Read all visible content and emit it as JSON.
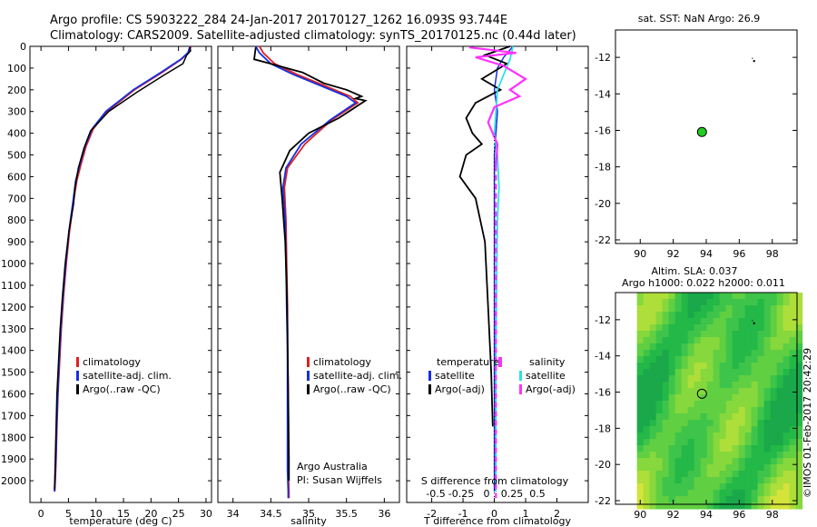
{
  "title_line1": "Argo profile: CS 5903222_284 24-Jan-2017 20170127_1262 16.093S 93.744E",
  "title_line2": "Climatology: CARS2009. Satellite-adjusted climatology: synTS_20170125.nc (0.44d later)",
  "side_label": "©IMOS 01-Feb-2017 20:42:29",
  "colors": {
    "climatology": "#e02020",
    "satellite": "#1530e0",
    "argo": "#000000",
    "sat_salinity": "#30e0e8",
    "argo_salinity": "#ff30ff",
    "float_marker": "#22cc22"
  },
  "chart_data": [
    {
      "type": "line",
      "xlabel": "temperature (deg C)",
      "xlim": [
        -2,
        31
      ],
      "ylim": [
        2100,
        0
      ],
      "xticks": [
        "0",
        "5",
        "10",
        "15",
        "20",
        "25",
        "30"
      ],
      "yticks": [
        "0",
        "100",
        "200",
        "300",
        "400",
        "500",
        "600",
        "700",
        "800",
        "900",
        "1000",
        "1100",
        "1200",
        "1300",
        "1400",
        "1500",
        "1600",
        "1700",
        "1800",
        "1900",
        "2000"
      ],
      "legend": [
        "climatology",
        "satellite-adj. clim.",
        "Argo(..raw -QC)"
      ],
      "series": [
        {
          "name": "climatology",
          "x": [
            27.3,
            26.8,
            25.5,
            22,
            17,
            12,
            9.5,
            8.2,
            7.3,
            6.5,
            6,
            5.2,
            4.6,
            4.1,
            3.7,
            3.4,
            3.1,
            2.9,
            2.75,
            2.6,
            2.5
          ],
          "y": [
            0,
            30,
            60,
            120,
            200,
            300,
            380,
            460,
            540,
            620,
            700,
            850,
            1000,
            1150,
            1300,
            1450,
            1600,
            1750,
            1900,
            2000,
            2050
          ]
        },
        {
          "name": "satellite-adj. clim.",
          "x": [
            27.1,
            26.7,
            25.4,
            21.8,
            16.8,
            11.8,
            9.3,
            8,
            7.1,
            6.3,
            5.9,
            5.1,
            4.5,
            4,
            3.6,
            3.3,
            3.05,
            2.85,
            2.7,
            2.55,
            2.45
          ],
          "y": [
            0,
            30,
            60,
            120,
            200,
            300,
            380,
            460,
            540,
            620,
            700,
            850,
            1000,
            1150,
            1300,
            1450,
            1600,
            1750,
            1900,
            2000,
            2050
          ]
        },
        {
          "name": "Argo(..raw -QC)",
          "x": [
            27,
            27.2,
            26.5,
            25.8,
            22.5,
            17.5,
            12.3,
            9,
            7.8,
            6.8,
            6.2,
            5.9,
            5.1,
            4.4,
            3.9,
            3.5,
            3.2,
            2.9,
            2.7,
            2.5,
            2.45
          ],
          "y": [
            5,
            20,
            40,
            80,
            130,
            210,
            300,
            390,
            470,
            560,
            650,
            730,
            850,
            1000,
            1150,
            1300,
            1450,
            1600,
            1800,
            2000,
            2040
          ]
        }
      ]
    },
    {
      "type": "line",
      "xlabel": "salinity",
      "xlim": [
        33.8,
        36.2
      ],
      "ylim": [
        2100,
        0
      ],
      "xticks": [
        "34",
        "34.5",
        "35",
        "35.5",
        "36"
      ],
      "legend": [
        "climatology",
        "satellite-adj. clim.",
        "Argo(..raw -QC)"
      ],
      "annotation": [
        "Argo Australia",
        "PI: Susan Wijffels"
      ],
      "series": [
        {
          "name": "climatology",
          "x": [
            34.35,
            34.4,
            34.55,
            34.85,
            35.2,
            35.55,
            35.65,
            35.3,
            34.95,
            34.72,
            34.68,
            34.7,
            34.71,
            34.72,
            34.72,
            34.73,
            34.73,
            34.73,
            34.74,
            34.74
          ],
          "y": [
            0,
            30,
            80,
            130,
            180,
            230,
            260,
            340,
            450,
            560,
            650,
            800,
            1000,
            1200,
            1400,
            1600,
            1800,
            1950,
            2050,
            2080
          ]
        },
        {
          "name": "satellite-adj. clim.",
          "x": [
            34.3,
            34.35,
            34.5,
            34.8,
            35.15,
            35.5,
            35.62,
            35.28,
            34.9,
            34.7,
            34.66,
            34.69,
            34.7,
            34.71,
            34.72,
            34.72,
            34.72,
            34.72,
            34.73,
            34.73
          ],
          "y": [
            0,
            30,
            80,
            130,
            180,
            230,
            260,
            340,
            450,
            560,
            650,
            800,
            1000,
            1200,
            1400,
            1600,
            1800,
            1950,
            2050,
            2080
          ]
        },
        {
          "name": "Argo(..raw -QC)",
          "x": [
            34.3,
            34.28,
            34.5,
            34.6,
            34.92,
            35.2,
            35.5,
            35.7,
            35.62,
            35.75,
            35.4,
            35.0,
            34.75,
            34.62,
            34.65,
            34.69,
            34.71,
            34.72,
            34.73,
            34.74,
            34.74
          ],
          "y": [
            5,
            60,
            80,
            90,
            120,
            170,
            200,
            230,
            240,
            250,
            330,
            400,
            480,
            580,
            700,
            900,
            1100,
            1300,
            1600,
            1900,
            2000
          ]
        }
      ]
    },
    {
      "type": "line",
      "xlabel": "T difference from climatology",
      "x2label": "S difference from climatology",
      "xlim": [
        -2.8,
        3
      ],
      "ylim": [
        2100,
        0
      ],
      "xticks": [
        "-2",
        "-1",
        "0",
        "1",
        "2"
      ],
      "x2ticks": [
        "-0.5",
        "-0.25",
        "0",
        "0.25",
        "0.5"
      ],
      "legend_titles": [
        "temperature",
        "salinity"
      ],
      "legend": [
        "satellite",
        "Argo(-adj)",
        "satellite",
        "Argo(-adj)"
      ],
      "series": [
        {
          "name": "satellite",
          "x": [
            0.6,
            0.3,
            0.1,
            0,
            0.1,
            0.05,
            0,
            0,
            0,
            0,
            0,
            0,
            0
          ],
          "y": [
            0,
            50,
            100,
            200,
            300,
            400,
            500,
            700,
            900,
            1200,
            1500,
            1800,
            2050
          ]
        },
        {
          "name": "Argo(-adj)",
          "x": [
            0.5,
            -0.3,
            0.4,
            -0.4,
            0.2,
            -0.6,
            -0.9,
            -0.7,
            -0.4,
            -0.9,
            -1.1,
            -0.6,
            -0.3,
            -0.2,
            -0.1,
            -0.05
          ],
          "y": [
            0,
            40,
            80,
            150,
            200,
            260,
            330,
            400,
            450,
            500,
            600,
            700,
            900,
            1200,
            1500,
            1750
          ]
        },
        {
          "name": "satellite",
          "x": [
            0.6,
            0.5,
            0.1,
            0.05,
            0,
            0.1,
            0.15,
            0.1,
            0.08,
            0.05,
            0.05,
            0.05
          ],
          "y": [
            0,
            60,
            200,
            300,
            400,
            500,
            650,
            800,
            1000,
            1400,
            1800,
            2050
          ]
        },
        {
          "name": "Argo(-adj)",
          "x": [
            -0.8,
            0.7,
            -0.6,
            0.3,
            1.0,
            0.5,
            0.8,
            0,
            -0.2,
            0.1,
            0.05
          ],
          "y": [
            5,
            30,
            50,
            90,
            150,
            200,
            230,
            280,
            350,
            450,
            550
          ]
        },
        {
          "name": "Argo-S-adj-dashed",
          "x": [
            0.05,
            0.05,
            0.05,
            0.05
          ],
          "y": [
            550,
            1000,
            1600,
            2080
          ]
        }
      ]
    },
    {
      "type": "scatter",
      "title": "sat. SST: NaN Argo: 26.9",
      "xlim": [
        88.5,
        99.5
      ],
      "ylim": [
        -22.2,
        -10.5
      ],
      "xticks": [
        "90",
        "92",
        "94",
        "96",
        "98"
      ],
      "yticks": [
        "-12",
        "-14",
        "-16",
        "-18",
        "-20",
        "-22"
      ],
      "points": [
        {
          "lon": 93.74,
          "lat": -16.09
        }
      ]
    },
    {
      "type": "heatmap",
      "title_line1": "Altim. SLA: 0.037",
      "title_line2": "Argo h1000: 0.022 h2000: 0.011",
      "xlim": [
        88.5,
        99.5
      ],
      "ylim": [
        -22.2,
        -10.5
      ],
      "xticks": [
        "90",
        "92",
        "94",
        "96",
        "98"
      ],
      "yticks": [
        "-12",
        "-14",
        "-16",
        "-18",
        "-20",
        "-22"
      ],
      "points": [
        {
          "lon": 93.74,
          "lat": -16.09
        }
      ]
    }
  ]
}
